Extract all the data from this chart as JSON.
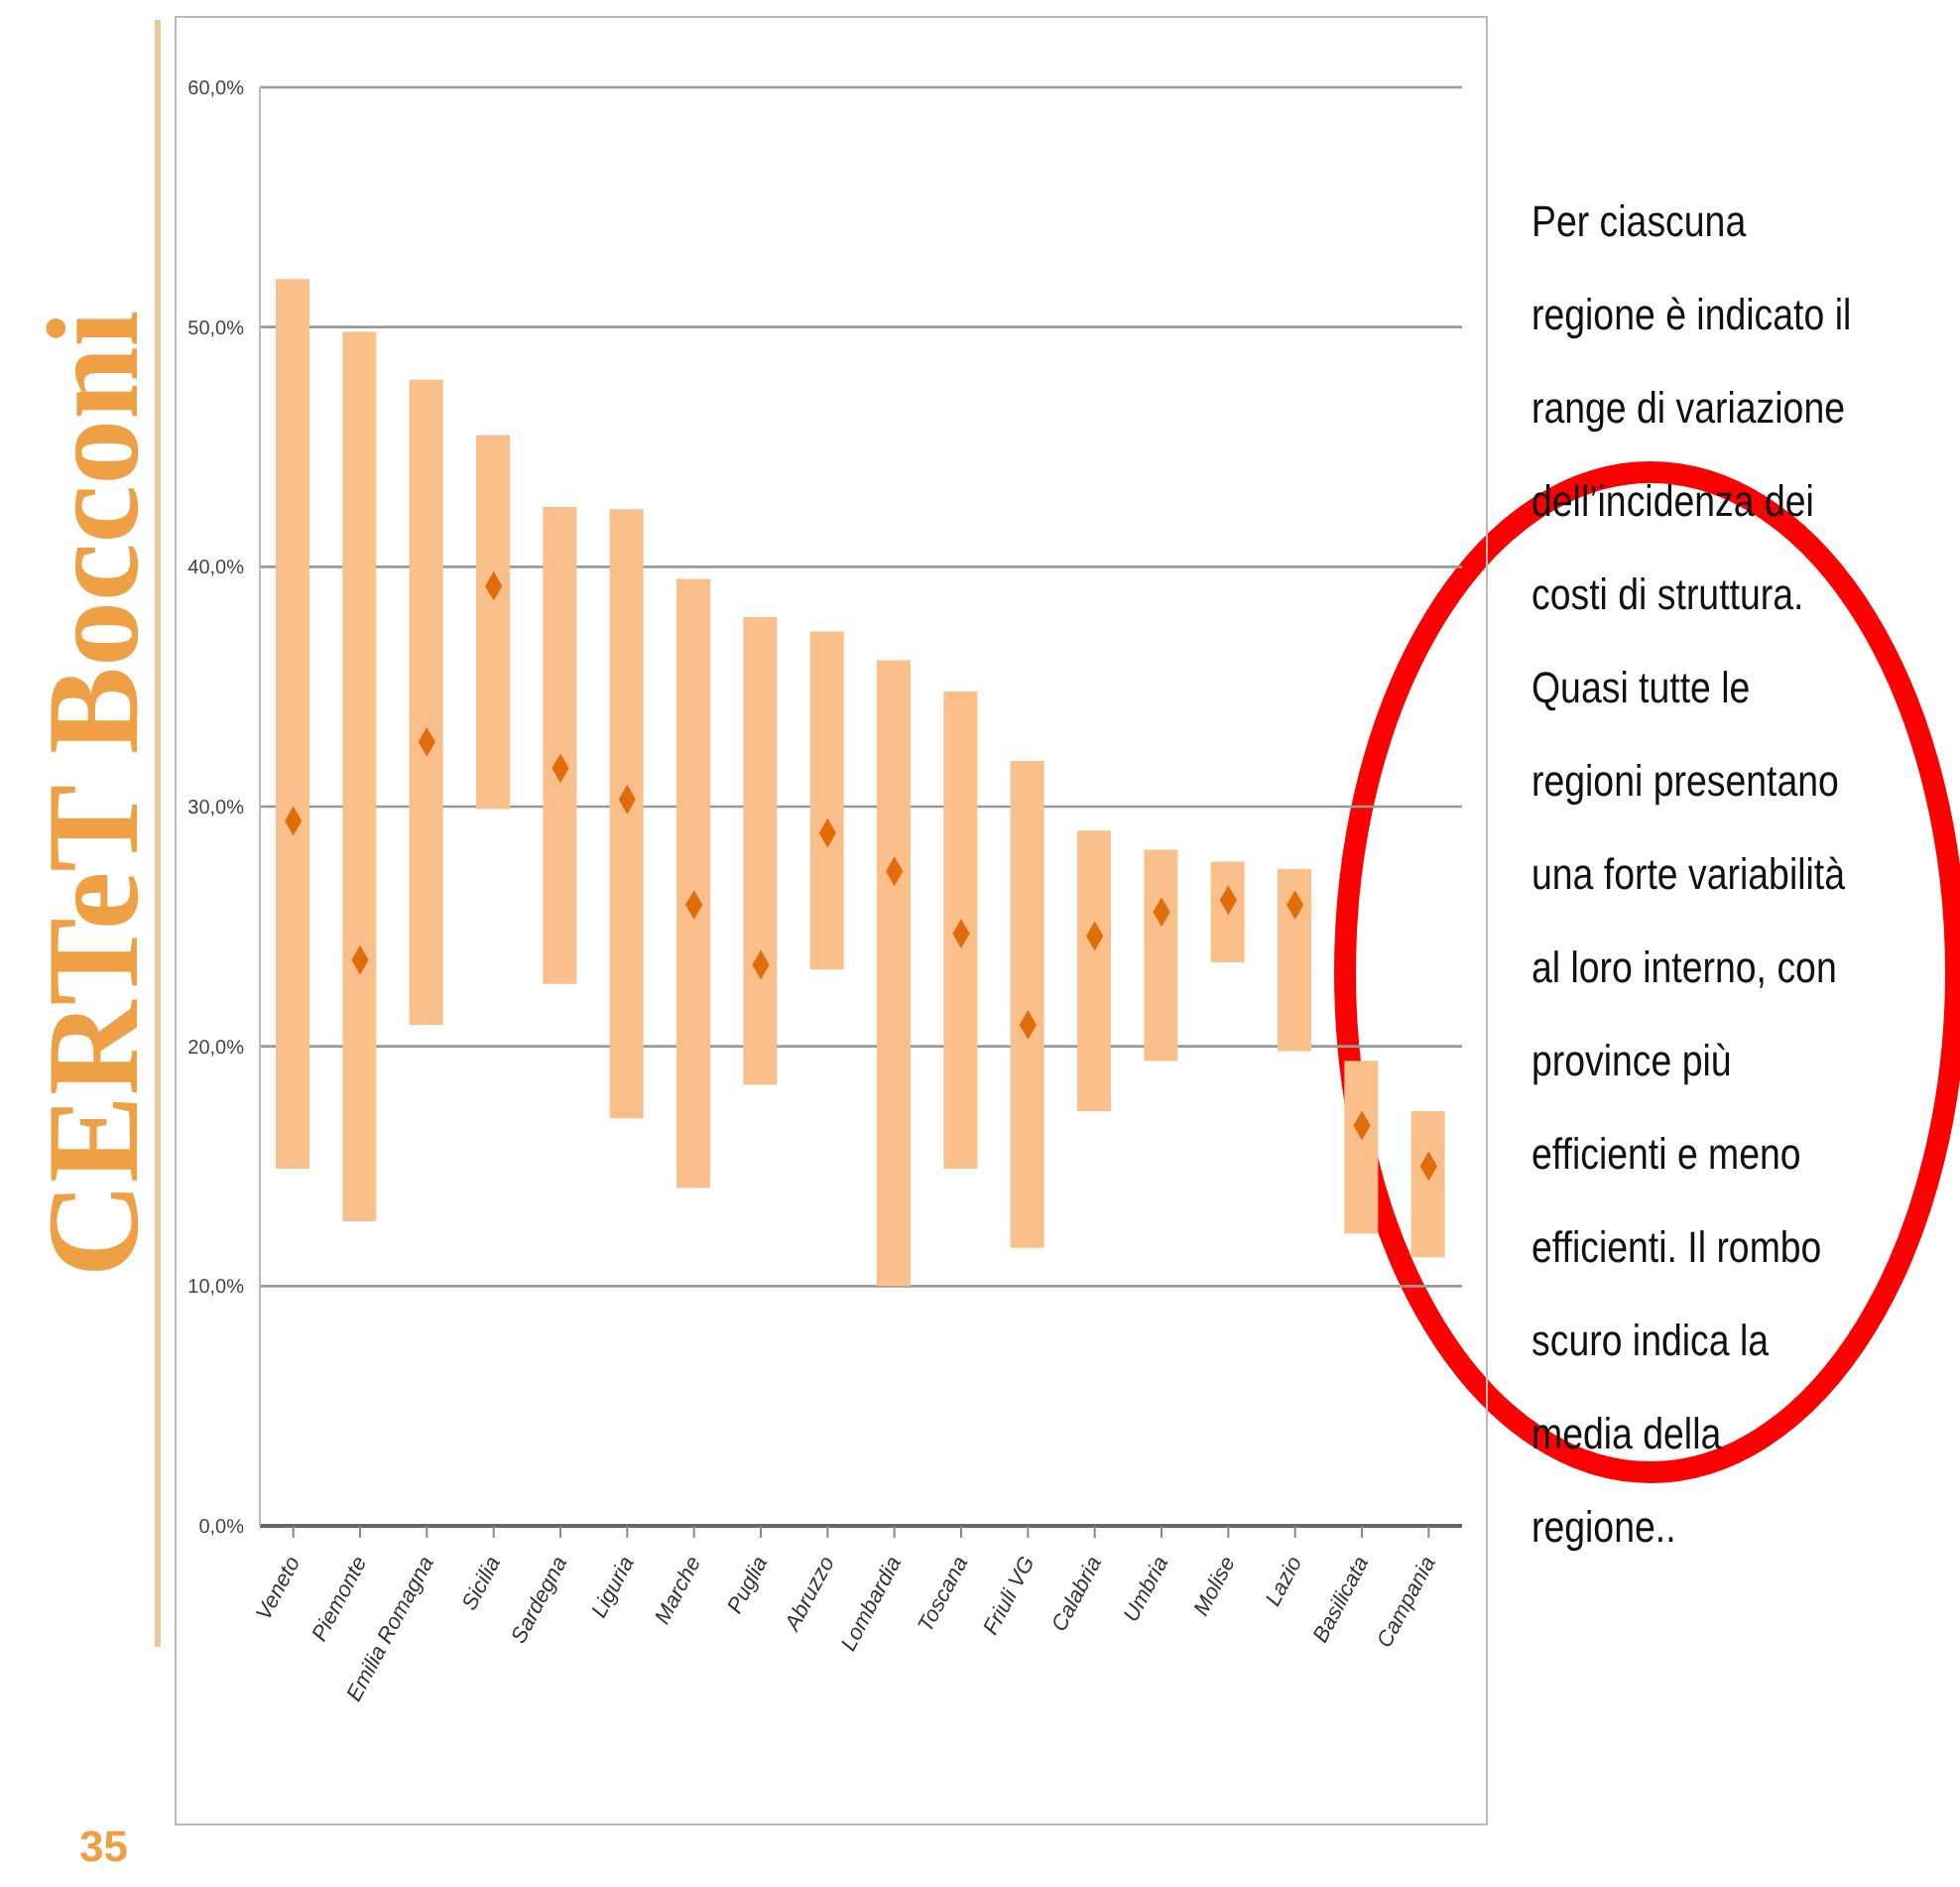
{
  "chart_data": {
    "type": "bar",
    "categories": [
      "Veneto",
      "Piemonte",
      "Emilia Romagna",
      "Sicilia",
      "Sardegna",
      "Liguria",
      "Marche",
      "Puglia",
      "Abruzzo",
      "Lombardia",
      "Toscana",
      "Friuli VG",
      "Calabria",
      "Umbria",
      "Molise",
      "Lazio",
      "Basilicata",
      "Campania"
    ],
    "series": [
      {
        "color": "#fbbf8c",
        "base": [
          14.9,
          12.7,
          20.9,
          29.9,
          22.6,
          17.0,
          14.1,
          18.4,
          23.2,
          10.0,
          14.9,
          11.6,
          17.3,
          19.4,
          23.5,
          19.8,
          12.2,
          11.2
        ],
        "values": [
          37.1,
          37.1,
          26.9,
          15.6,
          19.9,
          25.4,
          25.4,
          19.5,
          14.1,
          26.1,
          19.9,
          20.3,
          11.7,
          8.8,
          4.2,
          7.6,
          7.2,
          6.1
        ]
      },
      {
        "type": "scatter",
        "color": "#e06c0a",
        "marker": "diamond",
        "values": [
          29.4,
          23.6,
          32.7,
          39.2,
          31.6,
          30.3,
          25.9,
          23.4,
          28.9,
          27.3,
          24.7,
          20.9,
          24.6,
          25.6,
          26.1,
          25.9,
          16.7,
          15.0
        ]
      }
    ],
    "ylim": [
      0,
      60
    ],
    "yticks": [
      {
        "value": 0,
        "label": "0,0%"
      },
      {
        "value": 10,
        "label": "10,0%"
      },
      {
        "value": 20,
        "label": "20,0%"
      },
      {
        "value": 30,
        "label": "30,0%"
      },
      {
        "value": 40,
        "label": "40,0%"
      },
      {
        "value": 50,
        "label": "50,0%"
      },
      {
        "value": 60,
        "label": "60,0%"
      }
    ],
    "grid": "y",
    "legend": false,
    "annotations": [
      "CERTeT Bocconi",
      "35",
      "Per ciascuna regione è indicato il range di variazione dell’incidenza dei costi di struttura. Quasi tutte le regioni presentano una forte variabilità al loro interno, con province più efficienti e meno efficienti. Il rombo scuro indica la media della regione.."
    ]
  }
}
